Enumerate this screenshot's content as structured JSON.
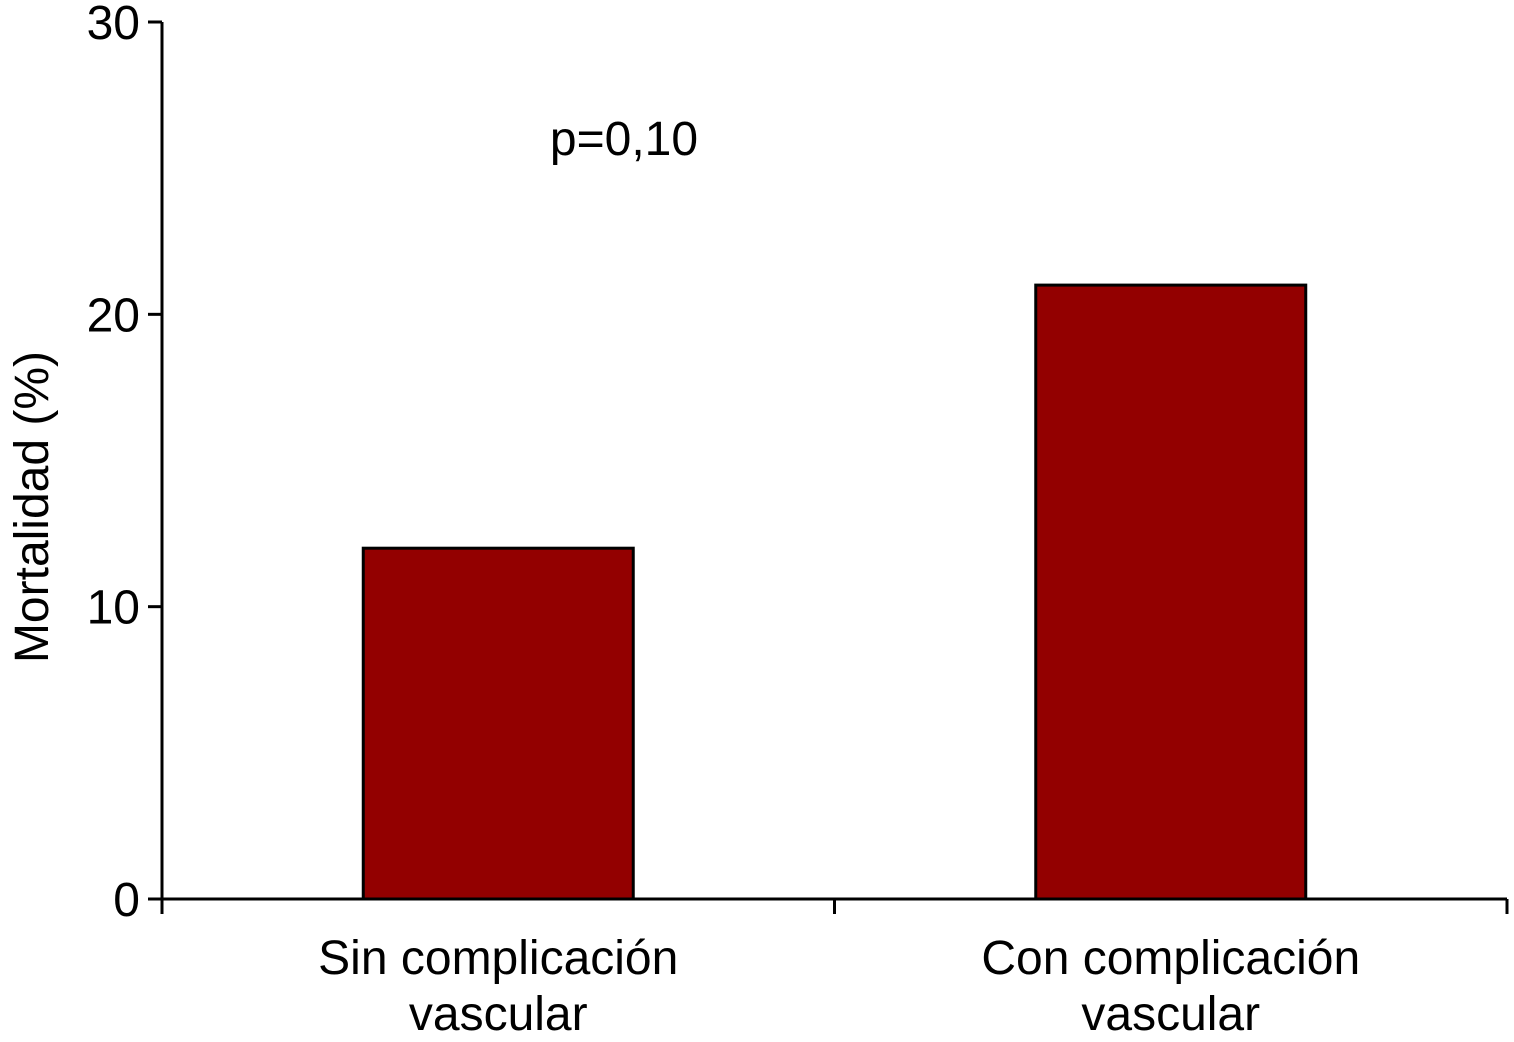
{
  "chart_data": {
    "type": "bar",
    "categories": [
      [
        "Sin complicación",
        "vascular"
      ],
      [
        "Con complicación",
        "vascular"
      ]
    ],
    "values": [
      12,
      21
    ],
    "title": "",
    "xlabel": "",
    "ylabel": "Mortalidad (%)",
    "ylim": [
      0,
      30
    ],
    "yticks": [
      0,
      10,
      20,
      30
    ],
    "annotation": "p=0,10",
    "bar_color": "#930000",
    "grid": false,
    "legend": "none"
  }
}
